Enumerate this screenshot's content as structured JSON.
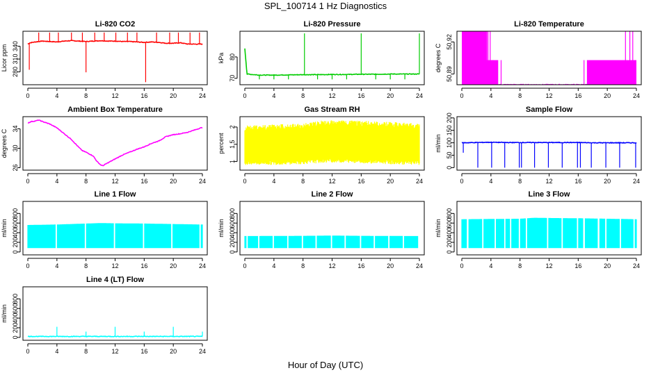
{
  "figure": {
    "title": "SPL_100714  1 Hz Diagnostics",
    "xlabel": "Hour of Day (UTC)"
  },
  "chart_data": [
    {
      "type": "line",
      "title": "Li-820 CO2",
      "xlabel": "",
      "ylabel": "Licor ppm",
      "color": "#ff0000",
      "xlim": [
        0,
        24
      ],
      "ylim": [
        250,
        375
      ],
      "xticks": [
        0,
        4,
        8,
        12,
        16,
        20,
        24
      ],
      "yticks": [
        280,
        310,
        340
      ],
      "series": [
        {
          "x": [
            0,
            0.3,
            1,
            2,
            3,
            4,
            5,
            6,
            7,
            8,
            9,
            10,
            11,
            12,
            13,
            14,
            15,
            16,
            17,
            18,
            19,
            20,
            21,
            22,
            23,
            24
          ],
          "y": [
            345,
            348,
            350,
            352,
            351,
            350,
            352,
            353,
            352,
            351,
            352,
            353,
            352,
            352,
            351,
            351,
            350,
            349,
            350,
            349,
            347,
            347,
            348,
            345,
            345,
            345
          ]
        }
      ],
      "spikes": [
        {
          "x": 0.2,
          "y": 285
        },
        {
          "x": 1.5,
          "y": 372
        },
        {
          "x": 3,
          "y": 372
        },
        {
          "x": 4.2,
          "y": 372
        },
        {
          "x": 6,
          "y": 372
        },
        {
          "x": 7.5,
          "y": 372
        },
        {
          "x": 8,
          "y": 279
        },
        {
          "x": 9.2,
          "y": 372
        },
        {
          "x": 10.5,
          "y": 372
        },
        {
          "x": 12.1,
          "y": 372
        },
        {
          "x": 13.7,
          "y": 372
        },
        {
          "x": 15,
          "y": 372
        },
        {
          "x": 16.2,
          "y": 256
        },
        {
          "x": 17.7,
          "y": 372
        },
        {
          "x": 19.5,
          "y": 372
        },
        {
          "x": 20.7,
          "y": 372
        },
        {
          "x": 22.3,
          "y": 372
        },
        {
          "x": 23.6,
          "y": 372
        }
      ]
    },
    {
      "type": "line",
      "title": "Li-820 Pressure",
      "xlabel": "",
      "ylabel": "kPa",
      "color": "#00cc00",
      "xlim": [
        0,
        24
      ],
      "ylim": [
        67,
        92
      ],
      "xticks": [
        0,
        4,
        8,
        12,
        16,
        20,
        24
      ],
      "yticks": [
        70,
        80
      ],
      "series": [
        {
          "x": [
            0,
            0.3,
            2,
            4,
            6,
            8,
            10,
            12,
            14,
            16,
            18,
            20,
            22,
            24
          ],
          "y": [
            84,
            72,
            71.5,
            71.5,
            71.6,
            71.7,
            71.7,
            71.8,
            71.8,
            71.9,
            71.9,
            72,
            72,
            72
          ]
        }
      ],
      "spikes": [
        {
          "x": 8.2,
          "y": 91
        },
        {
          "x": 16,
          "y": 91
        },
        {
          "x": 24,
          "y": 91
        },
        {
          "x": 2,
          "y": 69.5
        },
        {
          "x": 4,
          "y": 69.5
        },
        {
          "x": 6,
          "y": 69.5
        },
        {
          "x": 10,
          "y": 69.5
        },
        {
          "x": 12,
          "y": 69.5
        },
        {
          "x": 14,
          "y": 69.5
        },
        {
          "x": 18,
          "y": 69.5
        },
        {
          "x": 20,
          "y": 69.5
        },
        {
          "x": 22,
          "y": 69.5
        }
      ]
    },
    {
      "type": "area",
      "title": "Li-820 Temperature",
      "xlabel": "",
      "ylabel": "degrees C",
      "color": "#ff00ff",
      "xlim": [
        0,
        24
      ],
      "ylim": [
        50.88,
        50.93
      ],
      "xticks": [
        0,
        4,
        8,
        12,
        16,
        20,
        24
      ],
      "yticks": [
        50.89,
        50.92
      ],
      "bands": [
        {
          "x0": 0,
          "x1": 3.5,
          "low": 50.88,
          "high": 50.93
        },
        {
          "x0": 0,
          "x1": 5,
          "low": 50.88,
          "high": 50.903
        },
        {
          "x0": 17.2,
          "x1": 24,
          "low": 50.88,
          "high": 50.903
        }
      ],
      "series": [
        {
          "x": [
            0,
            24
          ],
          "y": [
            50.88,
            50.88
          ]
        }
      ],
      "spikes": [
        {
          "x": 3.6,
          "y": 50.93
        },
        {
          "x": 3.9,
          "y": 50.93
        },
        {
          "x": 4.3,
          "y": 50.903
        },
        {
          "x": 5.4,
          "y": 50.903
        },
        {
          "x": 16.8,
          "y": 50.903
        },
        {
          "x": 22.5,
          "y": 50.93
        },
        {
          "x": 23.1,
          "y": 50.93
        },
        {
          "x": 23.5,
          "y": 50.93
        }
      ]
    },
    {
      "type": "line",
      "title": "Ambient Box Temperature",
      "xlabel": "",
      "ylabel": "degrees C",
      "color": "#ff00ff",
      "xlim": [
        0,
        24
      ],
      "ylim": [
        25.5,
        36.5
      ],
      "xticks": [
        0,
        4,
        8,
        12,
        16,
        20,
        24
      ],
      "yticks": [
        26,
        30,
        34
      ],
      "series": [
        {
          "x": [
            0,
            0.5,
            1,
            1.5,
            2,
            3,
            4,
            5,
            6,
            7,
            7.5,
            8,
            9,
            9.5,
            10,
            10.3,
            11,
            12,
            13,
            14,
            15,
            16,
            17,
            18,
            19,
            20,
            21,
            22,
            23,
            24
          ],
          "y": [
            35.2,
            35.5,
            35.6,
            35.8,
            35.5,
            35,
            34.2,
            33,
            31.8,
            30.2,
            29.5,
            29.2,
            28.4,
            27.3,
            26.6,
            26.4,
            27,
            27.8,
            28.6,
            29.2,
            29.8,
            30.3,
            31,
            31.5,
            32.4,
            32.8,
            33,
            33.3,
            33.8,
            34.3
          ]
        }
      ]
    },
    {
      "type": "area",
      "title": "Gas Stream RH",
      "xlabel": "",
      "ylabel": "percent",
      "color": "#ffff00",
      "xlim": [
        0,
        24
      ],
      "ylim": [
        0.75,
        2.3
      ],
      "xticks": [
        0,
        4,
        8,
        12,
        16,
        20,
        24
      ],
      "yticks": [
        1.0,
        1.5,
        2.0
      ],
      "series": [
        {
          "name": "upper",
          "x": [
            0,
            4,
            8,
            10,
            12,
            16,
            20,
            24
          ],
          "y": [
            2.05,
            2.08,
            2.1,
            2.18,
            2.2,
            2.18,
            2.15,
            2.1
          ]
        },
        {
          "name": "lower",
          "x": [
            0,
            4,
            8,
            10,
            12,
            16,
            20,
            24
          ],
          "y": [
            0.9,
            0.9,
            0.92,
            0.95,
            0.97,
            0.95,
            0.92,
            0.9
          ]
        }
      ]
    },
    {
      "type": "line",
      "title": "Sample Flow",
      "xlabel": "",
      "ylabel": "ml/min",
      "color": "#0000ff",
      "xlim": [
        0,
        24
      ],
      "ylim": [
        -10,
        205
      ],
      "xticks": [
        0,
        4,
        8,
        12,
        16,
        20,
        24
      ],
      "yticks": [
        0,
        50,
        100,
        150,
        200
      ],
      "series": [
        {
          "x": [
            0,
            2,
            4,
            6,
            8,
            10,
            12,
            14,
            16,
            18,
            20,
            22,
            24
          ],
          "y": [
            100,
            101,
            102,
            101,
            101,
            101,
            101,
            101,
            101,
            100,
            100,
            100,
            100
          ]
        }
      ],
      "spikes": [
        {
          "x": 0.2,
          "y": 60
        },
        {
          "x": 2.2,
          "y": 0
        },
        {
          "x": 4.1,
          "y": 0
        },
        {
          "x": 5.9,
          "y": 0
        },
        {
          "x": 7.9,
          "y": 0
        },
        {
          "x": 8.2,
          "y": 0
        },
        {
          "x": 10,
          "y": 0
        },
        {
          "x": 11.9,
          "y": 0
        },
        {
          "x": 13.8,
          "y": 0
        },
        {
          "x": 15.9,
          "y": 0
        },
        {
          "x": 16.3,
          "y": 0
        },
        {
          "x": 17.8,
          "y": 0
        },
        {
          "x": 19.8,
          "y": 0
        },
        {
          "x": 21.7,
          "y": 0
        },
        {
          "x": 23.9,
          "y": 0
        }
      ]
    },
    {
      "type": "area",
      "title": "Line 1 Flow",
      "xlabel": "",
      "ylabel": "ml/min",
      "color": "#00ffff",
      "xlim": [
        0,
        24
      ],
      "ylim": [
        -60,
        1050
      ],
      "xticks": [
        0,
        4,
        8,
        12,
        16,
        20,
        24
      ],
      "yticks": [
        0,
        200,
        400,
        600,
        800
      ],
      "series": [
        {
          "name": "upper",
          "x": [
            0,
            4,
            8,
            10,
            12,
            16,
            20,
            24
          ],
          "y": [
            560,
            570,
            590,
            600,
            595,
            590,
            580,
            570
          ]
        },
        {
          "name": "lower",
          "x": [
            0,
            24
          ],
          "y": [
            80,
            80
          ]
        }
      ],
      "gaps": [
        3.9,
        7.9,
        11.9,
        15.9,
        19.8,
        23.7
      ]
    },
    {
      "type": "area",
      "title": "Line 2 Flow",
      "xlabel": "",
      "ylabel": "ml/min",
      "color": "#00ffff",
      "xlim": [
        0,
        24
      ],
      "ylim": [
        -60,
        1050
      ],
      "xticks": [
        0,
        4,
        8,
        12,
        16,
        20,
        24
      ],
      "yticks": [
        0,
        200,
        400,
        600,
        800
      ],
      "series": [
        {
          "name": "upper",
          "x": [
            0,
            8,
            12,
            16,
            24
          ],
          "y": [
            330,
            335,
            340,
            335,
            330
          ]
        },
        {
          "name": "lower",
          "x": [
            0,
            24
          ],
          "y": [
            80,
            80
          ]
        }
      ],
      "gaps": [
        0.3,
        1.9,
        3.9,
        5.9,
        7.9,
        9.8,
        11.9,
        13.8,
        15.9,
        17.8,
        19.8,
        21.8,
        23.9
      ]
    },
    {
      "type": "area",
      "title": "Line 3 Flow",
      "xlabel": "",
      "ylabel": "ml/min",
      "color": "#00ffff",
      "xlim": [
        0,
        24
      ],
      "ylim": [
        -60,
        1050
      ],
      "xticks": [
        0,
        4,
        8,
        12,
        16,
        20,
        24
      ],
      "yticks": [
        0,
        200,
        400,
        600,
        800
      ],
      "series": [
        {
          "name": "upper",
          "x": [
            0,
            8,
            10,
            12,
            16,
            20,
            24
          ],
          "y": [
            680,
            690,
            710,
            705,
            700,
            690,
            680
          ]
        },
        {
          "name": "lower",
          "x": [
            0,
            24
          ],
          "y": [
            80,
            80
          ]
        }
      ],
      "gaps": [
        0.8,
        2.9,
        4.6,
        5.9,
        6.7,
        7.9,
        8.9,
        11.8,
        13.8,
        15.9,
        16.8,
        18.8,
        19.8,
        21.8,
        23.7
      ]
    },
    {
      "type": "line",
      "title": "Line 4 (LT) Flow",
      "xlabel": "",
      "ylabel": "ml/min",
      "color": "#00ffff",
      "xlim": [
        0,
        24
      ],
      "ylim": [
        -60,
        1050
      ],
      "xticks": [
        0,
        4,
        8,
        12,
        16,
        20,
        24
      ],
      "yticks": [
        0,
        200,
        400,
        600,
        800
      ],
      "series": [
        {
          "x": [
            0,
            24
          ],
          "y": [
            20,
            20
          ]
        }
      ],
      "spikes": [
        {
          "x": 4,
          "y": 220
        },
        {
          "x": 8,
          "y": 120
        },
        {
          "x": 12,
          "y": 220
        },
        {
          "x": 16,
          "y": 120
        },
        {
          "x": 20,
          "y": 220
        },
        {
          "x": 24,
          "y": 120
        }
      ]
    }
  ]
}
